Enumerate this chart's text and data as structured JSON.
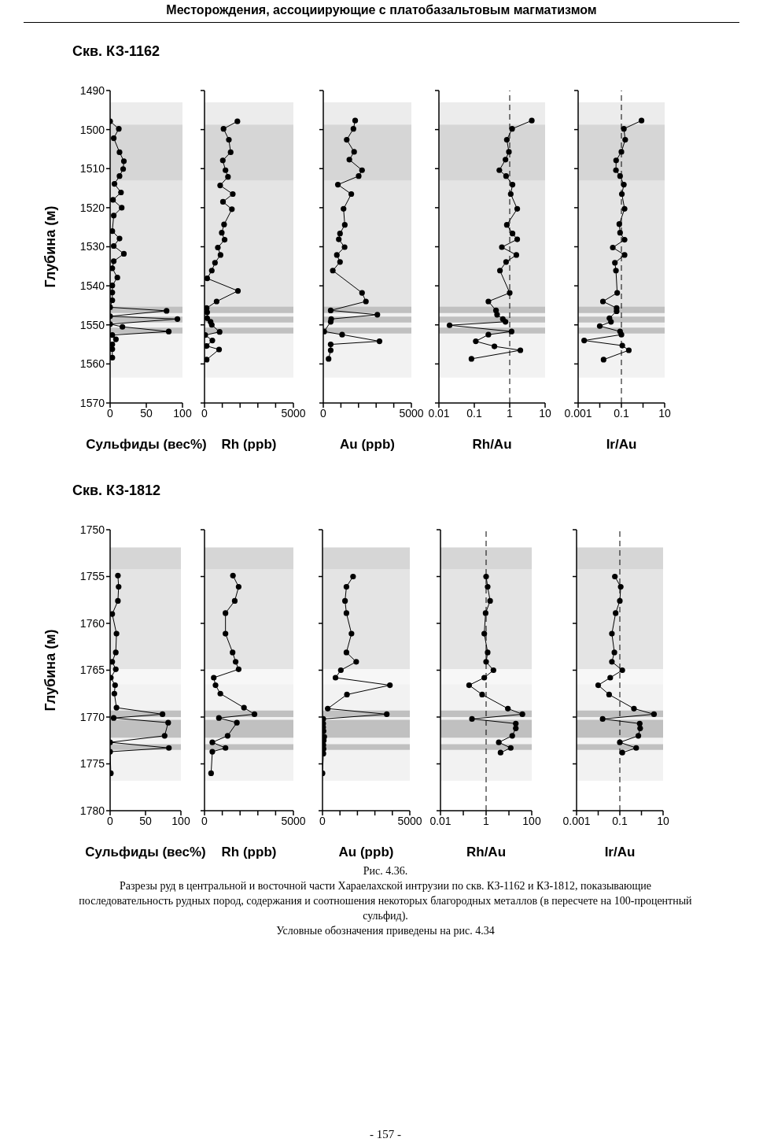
{
  "chart_data": [
    {
      "type": "line",
      "title": "Скв. КЗ-1162",
      "ylabel": "Глубина (м)",
      "xlabel": "Сульфиды (вес%)",
      "annotations": [
        "Месторождения, ассоциирующие с платобазальтовым магматизмом"
      ],
      "color": "#000000",
      "marker": "circle",
      "line_style": "solid",
      "x": [
        0,
        12,
        5,
        13,
        19,
        18,
        13,
        6,
        15,
        4,
        16,
        5,
        3,
        13,
        5,
        19,
        5,
        3,
        10,
        3,
        3,
        3,
        0,
        78,
        0,
        93,
        0,
        17,
        81,
        3,
        8,
        3,
        3,
        3
      ],
      "values": [
        1497.9,
        1499.8,
        1502.2,
        1505.8,
        1508.1,
        1510.1,
        1511.9,
        1513.9,
        1516.1,
        1518,
        1520,
        1522,
        1526,
        1527.9,
        1529.8,
        1531.8,
        1533.7,
        1535.5,
        1537.9,
        1539.9,
        1541.7,
        1543.7,
        1545.5,
        1546.4,
        1547.8,
        1548.5,
        1549.8,
        1550.5,
        1551.7,
        1552.6,
        1553.7,
        1555,
        1556.2,
        1558.4
      ],
      "xlim": [
        0,
        100
      ],
      "xticks": [
        0,
        50,
        100
      ],
      "ylim": [
        1570,
        1490
      ],
      "yticks": [
        1490,
        1500,
        1510,
        1520,
        1530,
        1540,
        1550,
        1560,
        1570
      ],
      "bands": [
        {
          "axis": "y",
          "from": 1493,
          "to": 1498.7,
          "color": "#ececec"
        },
        {
          "axis": "y",
          "from": 1498.7,
          "to": 1513.1,
          "color": "#d6d6d6"
        },
        {
          "axis": "y",
          "from": 1513.1,
          "to": 1545.3,
          "color": "#e4e4e4"
        },
        {
          "axis": "y",
          "from": 1545.3,
          "to": 1563.5,
          "color": "#f2f2f2"
        },
        {
          "axis": "y",
          "from": 1545.3,
          "to": 1547,
          "color": "#c0c0c0"
        },
        {
          "axis": "y",
          "from": 1547.9,
          "to": 1549.4,
          "color": "#c0c0c0"
        },
        {
          "axis": "y",
          "from": 1550.7,
          "to": 1552.2,
          "color": "#c0c0c0"
        }
      ]
    },
    {
      "type": "line",
      "xlabel": "Rh (ppb)",
      "color": "#000000",
      "marker": "circle",
      "line_style": "solid",
      "tick_labels": "x",
      "x": [
        1850,
        1070,
        1370,
        1470,
        1030,
        1180,
        1320,
        880,
        1590,
        1040,
        1540,
        1100,
        970,
        1130,
        750,
        900,
        590,
        410,
        150,
        1880,
        680,
        120,
        150,
        150,
        340,
        410,
        850,
        40,
        440,
        120,
        820,
        120
      ],
      "values": [
        1497.9,
        1499.8,
        1502.6,
        1505.8,
        1507.9,
        1510.4,
        1512.1,
        1514.3,
        1516.5,
        1518.5,
        1520.4,
        1524.3,
        1526.4,
        1528.2,
        1530.2,
        1532.1,
        1534.1,
        1536.1,
        1538.1,
        1541.3,
        1544,
        1545.7,
        1546.8,
        1548.3,
        1549.2,
        1550,
        1551.8,
        1552.6,
        1554,
        1555.4,
        1556.3,
        1558.9
      ],
      "xlim": [
        0,
        5000
      ],
      "xticks": [
        0,
        {
          "value": 1000,
          "label": null
        },
        {
          "value": 2000,
          "label": null
        },
        {
          "value": 3000,
          "label": null
        },
        {
          "value": 4000,
          "label": null
        },
        5000
      ],
      "ylim": [
        1570,
        1490
      ],
      "yticks": [
        1490,
        1500,
        1510,
        1520,
        1530,
        1540,
        1550,
        1560,
        1570
      ],
      "bands": [
        {
          "axis": "y",
          "from": 1493,
          "to": 1498.7,
          "color": "#ececec"
        },
        {
          "axis": "y",
          "from": 1498.7,
          "to": 1513.1,
          "color": "#d6d6d6"
        },
        {
          "axis": "y",
          "from": 1513.1,
          "to": 1545.3,
          "color": "#e4e4e4"
        },
        {
          "axis": "y",
          "from": 1545.3,
          "to": 1563.5,
          "color": "#f2f2f2"
        },
        {
          "axis": "y",
          "from": 1545.3,
          "to": 1547,
          "color": "#c0c0c0"
        },
        {
          "axis": "y",
          "from": 1547.9,
          "to": 1549.4,
          "color": "#c0c0c0"
        },
        {
          "axis": "y",
          "from": 1550.7,
          "to": 1552.2,
          "color": "#c0c0c0"
        }
      ]
    },
    {
      "type": "line",
      "xlabel": "Au (ppb)",
      "color": "#000000",
      "marker": "circle",
      "line_style": "solid",
      "tick_labels": "x",
      "x": [
        1810,
        1710,
        1330,
        1750,
        1480,
        2200,
        2010,
        830,
        1590,
        1150,
        1220,
        950,
        880,
        1210,
        770,
        950,
        540,
        2200,
        2420,
        420,
        3070,
        450,
        420,
        50,
        1070,
        3190,
        420,
        420,
        300
      ],
      "values": [
        1497.7,
        1499.8,
        1502.6,
        1505.7,
        1507.7,
        1510.4,
        1511.9,
        1514.1,
        1516.5,
        1520.3,
        1524.4,
        1526.6,
        1528.1,
        1530.1,
        1532.1,
        1533.9,
        1536.1,
        1541.8,
        1544,
        1546.3,
        1547.4,
        1548.5,
        1549.2,
        1551.7,
        1552.5,
        1554.2,
        1555,
        1556.5,
        1558.7
      ],
      "xlim": [
        0,
        5000
      ],
      "xticks": [
        0,
        {
          "value": 1000,
          "label": null
        },
        {
          "value": 2000,
          "label": null
        },
        {
          "value": 3000,
          "label": null
        },
        {
          "value": 4000,
          "label": null
        },
        5000
      ],
      "ylim": [
        1570,
        1490
      ],
      "yticks": [
        1490,
        1500,
        1510,
        1520,
        1530,
        1540,
        1550,
        1560,
        1570
      ],
      "bands": [
        {
          "axis": "y",
          "from": 1493,
          "to": 1498.7,
          "color": "#ececec"
        },
        {
          "axis": "y",
          "from": 1498.7,
          "to": 1513.1,
          "color": "#d6d6d6"
        },
        {
          "axis": "y",
          "from": 1513.1,
          "to": 1545.3,
          "color": "#e4e4e4"
        },
        {
          "axis": "y",
          "from": 1545.3,
          "to": 1563.5,
          "color": "#f2f2f2"
        },
        {
          "axis": "y",
          "from": 1545.3,
          "to": 1547,
          "color": "#c0c0c0"
        },
        {
          "axis": "y",
          "from": 1547.9,
          "to": 1549.4,
          "color": "#c0c0c0"
        },
        {
          "axis": "y",
          "from": 1550.7,
          "to": 1552.2,
          "color": "#c0c0c0"
        }
      ]
    },
    {
      "type": "line",
      "xlabel": "Rh/Au",
      "color": "#000000",
      "marker": "circle",
      "line_style": "solid",
      "tick_labels": "x",
      "log": "x",
      "x": [
        4.2,
        1.17,
        0.83,
        0.95,
        0.76,
        0.51,
        0.79,
        1.2,
        1.07,
        1.63,
        0.83,
        1.2,
        1.63,
        0.6,
        1.54,
        0.79,
        0.53,
        1.0,
        0.25,
        0.41,
        0.44,
        0.64,
        0.76,
        0.02,
        1.13,
        0.25,
        0.11,
        0.37,
        2.0,
        0.083
      ],
      "values": [
        1497.7,
        1499.8,
        1502.6,
        1505.7,
        1507.7,
        1510.4,
        1511.9,
        1514.1,
        1516.5,
        1520.3,
        1524.4,
        1526.6,
        1528.1,
        1530.1,
        1532.1,
        1533.9,
        1536.1,
        1541.8,
        1544,
        1546.3,
        1547.4,
        1548.5,
        1549.2,
        1550.1,
        1551.7,
        1552.5,
        1554.2,
        1555.5,
        1556.5,
        1558.7
      ],
      "xlim": [
        0.01,
        10
      ],
      "xticks": [
        0.01,
        0.1,
        1,
        10
      ],
      "ylim": [
        1570,
        1490
      ],
      "yticks": [
        1490,
        1500,
        1510,
        1520,
        1530,
        1540,
        1550,
        1560,
        1570
      ],
      "ref_lines": [
        {
          "axis": "x",
          "value": 1,
          "color": "#000000",
          "line_style": "dashed"
        }
      ],
      "bands": [
        {
          "axis": "y",
          "from": 1493,
          "to": 1498.7,
          "color": "#ececec"
        },
        {
          "axis": "y",
          "from": 1498.7,
          "to": 1513.1,
          "color": "#d6d6d6"
        },
        {
          "axis": "y",
          "from": 1513.1,
          "to": 1545.3,
          "color": "#e4e4e4"
        },
        {
          "axis": "y",
          "from": 1545.3,
          "to": 1563.5,
          "color": "#f2f2f2"
        },
        {
          "axis": "y",
          "from": 1545.3,
          "to": 1547,
          "color": "#c0c0c0"
        },
        {
          "axis": "y",
          "from": 1547.9,
          "to": 1549.4,
          "color": "#c0c0c0"
        },
        {
          "axis": "y",
          "from": 1550.7,
          "to": 1552.2,
          "color": "#c0c0c0"
        }
      ]
    },
    {
      "type": "line",
      "xlabel": "Ir/Au",
      "color": "#000000",
      "marker": "circle",
      "line_style": "solid",
      "tick_labels": "x",
      "log": "x",
      "x": [
        0.85,
        0.13,
        0.15,
        0.1,
        0.057,
        0.056,
        0.087,
        0.13,
        0.105,
        0.14,
        0.08,
        0.087,
        0.14,
        0.04,
        0.14,
        0.05,
        0.056,
        0.064,
        0.014,
        0.06,
        0.06,
        0.028,
        0.033,
        0.01,
        0.087,
        0.1,
        0.0019,
        0.11,
        0.22,
        0.015
      ],
      "values": [
        1497.7,
        1499.8,
        1502.6,
        1505.7,
        1507.9,
        1510.4,
        1511.9,
        1514.1,
        1516.5,
        1520.3,
        1524.2,
        1526.4,
        1528.2,
        1530.2,
        1532.1,
        1534.1,
        1536.1,
        1541.8,
        1544,
        1545.7,
        1546.5,
        1548.3,
        1549.2,
        1550.3,
        1551.7,
        1552.5,
        1554,
        1555.3,
        1556.5,
        1558.9
      ],
      "xlim": [
        0.001,
        10
      ],
      "xticks": [
        0.001,
        {
          "value": 0.01,
          "label": null
        },
        0.1,
        {
          "value": 1,
          "label": null
        },
        10
      ],
      "ylim": [
        1570,
        1490
      ],
      "yticks": [
        1490,
        1500,
        1510,
        1520,
        1530,
        1540,
        1550,
        1560,
        1570
      ],
      "ref_lines": [
        {
          "axis": "x",
          "value": 0.1,
          "color": "#000000",
          "line_style": "dashed"
        }
      ],
      "bands": [
        {
          "axis": "y",
          "from": 1493,
          "to": 1498.7,
          "color": "#ececec"
        },
        {
          "axis": "y",
          "from": 1498.7,
          "to": 1513.1,
          "color": "#d6d6d6"
        },
        {
          "axis": "y",
          "from": 1513.1,
          "to": 1545.3,
          "color": "#e4e4e4"
        },
        {
          "axis": "y",
          "from": 1545.3,
          "to": 1563.5,
          "color": "#f2f2f2"
        },
        {
          "axis": "y",
          "from": 1545.3,
          "to": 1547,
          "color": "#c0c0c0"
        },
        {
          "axis": "y",
          "from": 1547.9,
          "to": 1549.4,
          "color": "#c0c0c0"
        },
        {
          "axis": "y",
          "from": 1550.7,
          "to": 1552.2,
          "color": "#c0c0c0"
        }
      ]
    },
    {
      "type": "line",
      "title": "Скв. КЗ-1812",
      "ylabel": "Глубина (м)",
      "xlabel": "Сульфиды (вес%)",
      "color": "#000000",
      "marker": "circle",
      "line_style": "solid",
      "x": [
        11,
        12,
        11,
        3,
        9,
        8,
        3,
        8,
        1,
        7,
        6,
        9,
        74,
        5,
        82,
        77,
        0,
        83,
        0,
        1
      ],
      "values": [
        1754.9,
        1756.1,
        1757.6,
        1759,
        1761.1,
        1763.1,
        1764.1,
        1764.9,
        1765.8,
        1766.6,
        1767.5,
        1769,
        1769.7,
        1770.1,
        1770.6,
        1772,
        1772.7,
        1773.3,
        1773.7,
        1776
      ],
      "xlim": [
        0,
        100
      ],
      "xticks": [
        0,
        50,
        100
      ],
      "ylim": [
        1780,
        1750
      ],
      "yticks": [
        1750,
        1755,
        1760,
        1765,
        1770,
        1775,
        1780
      ],
      "bands": [
        {
          "axis": "y",
          "from": 1751.9,
          "to": 1754.2,
          "color": "#d6d6d6"
        },
        {
          "axis": "y",
          "from": 1754.2,
          "to": 1764.9,
          "color": "#e4e4e4"
        },
        {
          "axis": "y",
          "from": 1764.9,
          "to": 1766.5,
          "color": "#f7f7f7"
        },
        {
          "axis": "y",
          "from": 1766.5,
          "to": 1776.8,
          "color": "#f2f2f2"
        },
        {
          "axis": "y",
          "from": 1769.3,
          "to": 1770,
          "color": "#c0c0c0"
        },
        {
          "axis": "y",
          "from": 1770.3,
          "to": 1772.2,
          "color": "#c0c0c0"
        },
        {
          "axis": "y",
          "from": 1772.9,
          "to": 1773.5,
          "color": "#c0c0c0"
        }
      ]
    },
    {
      "type": "line",
      "xlabel": "Rh (ppb)",
      "color": "#000000",
      "marker": "circle",
      "line_style": "solid",
      "tick_labels": "x",
      "x": [
        1600,
        1920,
        1700,
        1180,
        1180,
        1580,
        1750,
        1920,
        520,
        620,
        890,
        2220,
        2810,
        810,
        1820,
        1300,
        440,
        1180,
        440,
        370
      ],
      "values": [
        1754.9,
        1756.1,
        1757.6,
        1758.9,
        1761.1,
        1763.1,
        1764.1,
        1764.9,
        1765.8,
        1766.6,
        1767.5,
        1769,
        1769.7,
        1770.1,
        1770.6,
        1772,
        1772.7,
        1773.3,
        1773.7,
        1776
      ],
      "xlim": [
        0,
        5000
      ],
      "xticks": [
        0,
        {
          "value": 1000,
          "label": null
        },
        {
          "value": 2000,
          "label": null
        },
        {
          "value": 3000,
          "label": null
        },
        {
          "value": 4000,
          "label": null
        },
        5000
      ],
      "ylim": [
        1780,
        1750
      ],
      "yticks": [
        1750,
        1755,
        1760,
        1765,
        1770,
        1775,
        1780
      ],
      "bands": [
        {
          "axis": "y",
          "from": 1751.9,
          "to": 1754.2,
          "color": "#d6d6d6"
        },
        {
          "axis": "y",
          "from": 1754.2,
          "to": 1764.9,
          "color": "#e4e4e4"
        },
        {
          "axis": "y",
          "from": 1764.9,
          "to": 1766.5,
          "color": "#f7f7f7"
        },
        {
          "axis": "y",
          "from": 1766.5,
          "to": 1776.8,
          "color": "#f2f2f2"
        },
        {
          "axis": "y",
          "from": 1769.3,
          "to": 1770,
          "color": "#c0c0c0"
        },
        {
          "axis": "y",
          "from": 1770.3,
          "to": 1772.2,
          "color": "#c0c0c0"
        },
        {
          "axis": "y",
          "from": 1772.9,
          "to": 1773.5,
          "color": "#c0c0c0"
        }
      ]
    },
    {
      "type": "line",
      "xlabel": "Au (ppb)",
      "color": "#000000",
      "marker": "circle",
      "line_style": "solid",
      "tick_labels": "x",
      "x": [
        1750,
        1370,
        1290,
        1370,
        1660,
        1370,
        1930,
        1050,
        745,
        3860,
        1400,
        300,
        3680,
        40,
        40,
        40,
        60,
        100,
        70,
        50,
        60,
        50,
        0
      ],
      "values": [
        1755,
        1756.1,
        1757.6,
        1758.9,
        1761.1,
        1763.1,
        1764.1,
        1765,
        1765.8,
        1766.6,
        1767.6,
        1769.1,
        1769.7,
        1770.2,
        1770.7,
        1771.1,
        1771.5,
        1772.1,
        1772.5,
        1773,
        1773.4,
        1773.9,
        1776
      ],
      "xlim": [
        0,
        5000
      ],
      "xticks": [
        0,
        {
          "value": 1000,
          "label": null
        },
        {
          "value": 2000,
          "label": null
        },
        {
          "value": 3000,
          "label": null
        },
        {
          "value": 4000,
          "label": null
        },
        5000
      ],
      "ylim": [
        1780,
        1750
      ],
      "yticks": [
        1750,
        1755,
        1760,
        1765,
        1770,
        1775,
        1780
      ],
      "bands": [
        {
          "axis": "y",
          "from": 1751.9,
          "to": 1754.2,
          "color": "#d6d6d6"
        },
        {
          "axis": "y",
          "from": 1754.2,
          "to": 1764.9,
          "color": "#e4e4e4"
        },
        {
          "axis": "y",
          "from": 1764.9,
          "to": 1766.5,
          "color": "#f7f7f7"
        },
        {
          "axis": "y",
          "from": 1766.5,
          "to": 1776.8,
          "color": "#f2f2f2"
        },
        {
          "axis": "y",
          "from": 1769.3,
          "to": 1770,
          "color": "#c0c0c0"
        },
        {
          "axis": "y",
          "from": 1770.3,
          "to": 1772.2,
          "color": "#c0c0c0"
        },
        {
          "axis": "y",
          "from": 1772.9,
          "to": 1773.5,
          "color": "#c0c0c0"
        }
      ]
    },
    {
      "type": "line",
      "xlabel": "Rh/Au",
      "color": "#000000",
      "marker": "circle",
      "line_style": "solid",
      "tick_labels": "x",
      "log": "x",
      "x": [
        1.0,
        1.17,
        1.5,
        0.95,
        0.83,
        1.17,
        1.0,
        2.1,
        0.83,
        0.18,
        0.67,
        9,
        39,
        0.24,
        20,
        20,
        14,
        3.6,
        12,
        4.3
      ],
      "values": [
        1755,
        1756.1,
        1757.6,
        1758.9,
        1761.1,
        1763.1,
        1764.1,
        1765,
        1765.8,
        1766.6,
        1767.6,
        1769.1,
        1769.7,
        1770.2,
        1770.7,
        1771.2,
        1772,
        1772.7,
        1773.3,
        1773.8
      ],
      "xlim": [
        0.01,
        100
      ],
      "xticks": [
        0.01,
        {
          "value": 0.1,
          "label": null
        },
        1,
        {
          "value": 10,
          "label": null
        },
        100
      ],
      "ylim": [
        1780,
        1750
      ],
      "yticks": [
        1750,
        1755,
        1760,
        1765,
        1770,
        1775,
        1780
      ],
      "ref_lines": [
        {
          "axis": "x",
          "value": 1,
          "color": "#000000",
          "line_style": "dashed"
        }
      ],
      "bands": [
        {
          "axis": "y",
          "from": 1751.9,
          "to": 1754.2,
          "color": "#d6d6d6"
        },
        {
          "axis": "y",
          "from": 1754.2,
          "to": 1764.9,
          "color": "#e4e4e4"
        },
        {
          "axis": "y",
          "from": 1764.9,
          "to": 1766.5,
          "color": "#f7f7f7"
        },
        {
          "axis": "y",
          "from": 1766.5,
          "to": 1776.8,
          "color": "#f2f2f2"
        },
        {
          "axis": "y",
          "from": 1769.3,
          "to": 1770,
          "color": "#c0c0c0"
        },
        {
          "axis": "y",
          "from": 1770.3,
          "to": 1772.2,
          "color": "#c0c0c0"
        },
        {
          "axis": "y",
          "from": 1772.9,
          "to": 1773.5,
          "color": "#c0c0c0"
        }
      ]
    },
    {
      "type": "line",
      "xlabel": "Ir/Au",
      "color": "#000000",
      "marker": "circle",
      "line_style": "solid",
      "tick_labels": "x",
      "log": "x",
      "x": [
        0.059,
        0.11,
        0.1,
        0.064,
        0.043,
        0.056,
        0.043,
        0.13,
        0.036,
        0.01,
        0.032,
        0.45,
        3.8,
        0.016,
        0.83,
        0.87,
        0.72,
        0.1,
        0.57,
        0.13
      ],
      "values": [
        1755,
        1756.1,
        1757.6,
        1758.9,
        1761.1,
        1763.1,
        1764.1,
        1765,
        1765.8,
        1766.6,
        1767.6,
        1769.1,
        1769.7,
        1770.2,
        1770.7,
        1771.2,
        1772,
        1772.7,
        1773.3,
        1773.8
      ],
      "xlim": [
        0.001,
        10
      ],
      "xticks": [
        0.001,
        {
          "value": 0.01,
          "label": null
        },
        0.1,
        {
          "value": 1,
          "label": null
        },
        10
      ],
      "ylim": [
        1780,
        1750
      ],
      "yticks": [
        1750,
        1755,
        1760,
        1765,
        1770,
        1775,
        1780
      ],
      "ref_lines": [
        {
          "axis": "x",
          "value": 0.1,
          "color": "#000000",
          "line_style": "dashed"
        }
      ],
      "annotations": [
        "Рис. 4.36.",
        "Разрезы руд в центральной и восточной части Хараелахской интрузии по скв. КЗ-1162 и КЗ-1812, показывающие последовательность рудных пород, содержания и соотношения некоторых благородных металлов (в пересчете на 100-процентный сульфид).",
        "Условные обозначения приведены на рис. 4.34",
        "- 157 -"
      ],
      "bands": [
        {
          "axis": "y",
          "from": 1751.9,
          "to": 1754.2,
          "color": "#d6d6d6"
        },
        {
          "axis": "y",
          "from": 1754.2,
          "to": 1764.9,
          "color": "#e4e4e4"
        },
        {
          "axis": "y",
          "from": 1764.9,
          "to": 1766.5,
          "color": "#f7f7f7"
        },
        {
          "axis": "y",
          "from": 1766.5,
          "to": 1776.8,
          "color": "#f2f2f2"
        },
        {
          "axis": "y",
          "from": 1769.3,
          "to": 1770,
          "color": "#c0c0c0"
        },
        {
          "axis": "y",
          "from": 1770.3,
          "to": 1772.2,
          "color": "#c0c0c0"
        },
        {
          "axis": "y",
          "from": 1772.9,
          "to": 1773.5,
          "color": "#c0c0c0"
        }
      ]
    }
  ]
}
